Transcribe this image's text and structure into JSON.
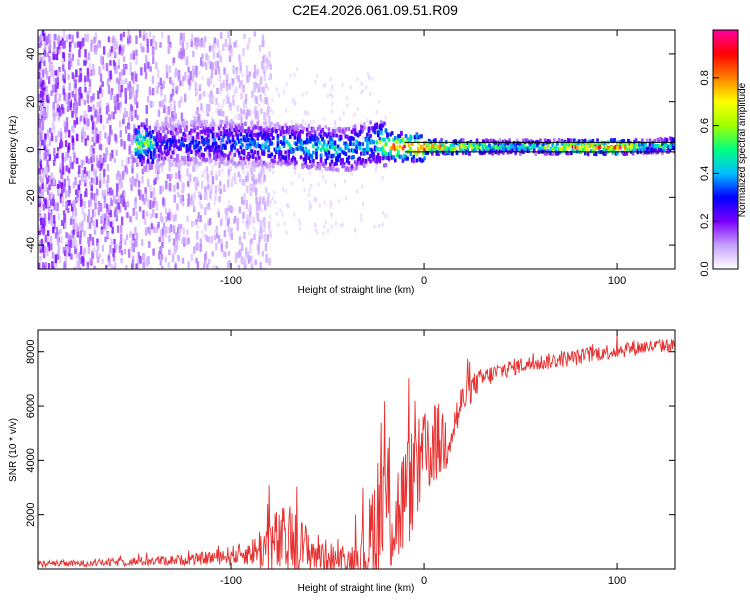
{
  "title": "C2E4.2026.061.09.51.R09",
  "chart_data": [
    {
      "type": "heatmap",
      "name": "spectrogram",
      "xlabel": "Height of straight line (km)",
      "ylabel": "Frequency (Hz)",
      "xlim": [
        -200,
        130
      ],
      "ylim": [
        -50,
        50
      ],
      "xticks": [
        -100,
        0,
        100
      ],
      "yticks": [
        -40,
        -20,
        0,
        20,
        40
      ],
      "ridge_points": [
        {
          "x": -140,
          "y": 2,
          "amp": 0.3
        },
        {
          "x": -110,
          "y": 3,
          "amp": 0.35
        },
        {
          "x": -80,
          "y": 2,
          "amp": 0.4
        },
        {
          "x": -60,
          "y": 1,
          "amp": 0.45
        },
        {
          "x": -40,
          "y": 0,
          "amp": 0.45
        },
        {
          "x": -25,
          "y": 3,
          "amp": 0.5
        },
        {
          "x": -15,
          "y": 1,
          "amp": 0.85
        },
        {
          "x": 0,
          "y": 1,
          "amp": 0.9
        },
        {
          "x": 20,
          "y": 1,
          "amp": 0.7
        },
        {
          "x": 40,
          "y": 1,
          "amp": 0.5
        },
        {
          "x": 60,
          "y": 1,
          "amp": 0.5
        },
        {
          "x": 80,
          "y": 1,
          "amp": 0.9
        },
        {
          "x": 100,
          "y": 1,
          "amp": 0.95
        },
        {
          "x": 115,
          "y": 1,
          "amp": 0.45
        },
        {
          "x": 130,
          "y": 2,
          "amp": 0.55
        }
      ],
      "colorbar": {
        "label": "Normalized spectral amplitude",
        "range": [
          0,
          1
        ],
        "ticks": [
          0.0,
          0.2,
          0.4,
          0.6,
          0.8
        ],
        "colors": [
          "#ffffff",
          "#c8a0ff",
          "#7a00ff",
          "#0000ff",
          "#00c0ff",
          "#00ff80",
          "#a0ff00",
          "#ffff00",
          "#ff8000",
          "#ff0000",
          "#ff00a0"
        ]
      }
    },
    {
      "type": "line",
      "name": "snr",
      "xlabel": "Height of straight line (km)",
      "ylabel": "SNR (10 * v/v)",
      "xlim": [
        -200,
        130
      ],
      "ylim": [
        0,
        8800
      ],
      "xticks": [
        -100,
        0,
        100
      ],
      "yticks": [
        2000,
        4000,
        6000,
        8000
      ],
      "color": "#e83030",
      "x": [
        -200,
        -180,
        -160,
        -140,
        -120,
        -100,
        -90,
        -80,
        -70,
        -60,
        -50,
        -40,
        -30,
        -25,
        -20,
        -15,
        -10,
        -5,
        0,
        5,
        10,
        15,
        20,
        25,
        30,
        40,
        50,
        60,
        70,
        80,
        90,
        100,
        110,
        120,
        130
      ],
      "y": [
        200,
        200,
        250,
        300,
        350,
        500,
        600,
        900,
        1000,
        700,
        450,
        300,
        600,
        1800,
        2600,
        1800,
        2600,
        3400,
        4000,
        4600,
        4700,
        5200,
        6200,
        6700,
        7000,
        7300,
        7500,
        7600,
        7700,
        7800,
        7950,
        8050,
        8150,
        8200,
        8250
      ],
      "spread": [
        120,
        120,
        150,
        180,
        200,
        350,
        450,
        1200,
        1400,
        900,
        600,
        400,
        1200,
        2500,
        3000,
        2200,
        2200,
        2000,
        1800,
        1500,
        1500,
        900,
        700,
        500,
        400,
        350,
        300,
        300,
        300,
        300,
        300,
        300,
        300,
        250,
        250
      ]
    }
  ]
}
